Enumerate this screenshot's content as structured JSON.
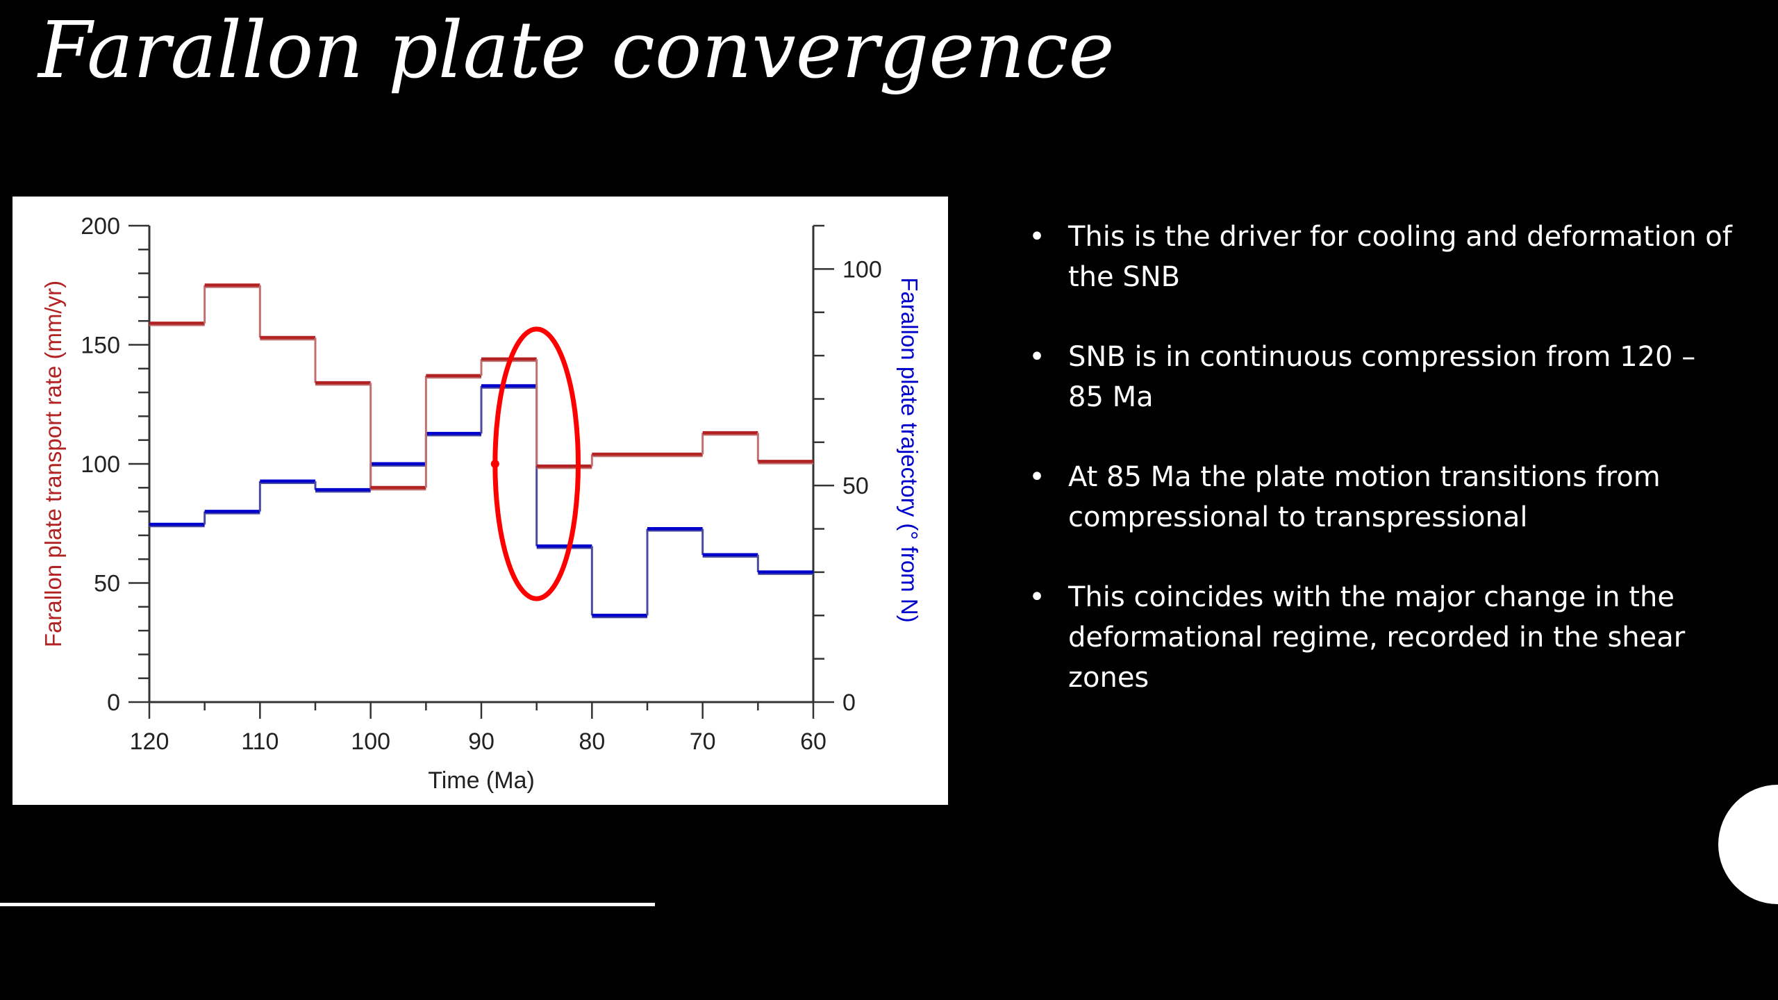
{
  "slide": {
    "title": "Farallon plate convergence",
    "bullets": [
      "This is the driver for cooling and deformation of the SNB",
      "SNB is in continuous compression from 120 – 85 Ma",
      "At 85 Ma the plate motion transitions from compressional to transpressional",
      "This coincides with the major change in the deformational regime, recorded in the shear zones"
    ],
    "bullet_symbol": "•"
  },
  "chart_data": {
    "type": "line",
    "step": true,
    "xlabel": "Time (Ma)",
    "ylabel_left": "Farallon plate transport rate (mm/yr)",
    "ylabel_right": "Farallon plate trajectory (° from N)",
    "xlim": [
      120,
      60
    ],
    "ylim_left": [
      0,
      200
    ],
    "ylim_right": [
      0,
      110
    ],
    "x_ticks": [
      120,
      110,
      100,
      90,
      80,
      70,
      60
    ],
    "y_left_ticks": [
      0,
      50,
      100,
      150,
      200
    ],
    "y_right_ticks": [
      0,
      50,
      100
    ],
    "colors": {
      "rate_dark": "#b22222",
      "rate_light": "#c07070",
      "trajectory_dark": "#0000cc",
      "trajectory_light": "#4a4a9e",
      "highlight_ellipse": "#ff0000",
      "left_axis_label": "#b22222",
      "right_axis_label": "#0000cc"
    },
    "series": [
      {
        "axis": "left",
        "segments": [
          {
            "x0": 120,
            "x1": 115,
            "y": 159
          },
          {
            "x0": 115,
            "x1": 110,
            "y": 175
          },
          {
            "x0": 110,
            "x1": 105,
            "y": 153
          },
          {
            "x0": 105,
            "x1": 100,
            "y": 134
          },
          {
            "x0": 100,
            "x1": 95,
            "y": 90
          },
          {
            "x0": 95,
            "x1": 90,
            "y": 137
          },
          {
            "x0": 90,
            "x1": 85,
            "y": 144
          },
          {
            "x0": 85,
            "x1": 80,
            "y": 99
          },
          {
            "x0": 80,
            "x1": 75,
            "y": 104
          },
          {
            "x0": 75,
            "x1": 70,
            "y": 104
          },
          {
            "x0": 70,
            "x1": 65,
            "y": 113
          },
          {
            "x0": 65,
            "x1": 60,
            "y": 101
          }
        ]
      },
      {
        "axis": "right",
        "segments": [
          {
            "x0": 120,
            "x1": 115,
            "y": 41
          },
          {
            "x0": 115,
            "x1": 110,
            "y": 44
          },
          {
            "x0": 110,
            "x1": 105,
            "y": 51
          },
          {
            "x0": 105,
            "x1": 100,
            "y": 49
          },
          {
            "x0": 100,
            "x1": 95,
            "y": 55
          },
          {
            "x0": 95,
            "x1": 90,
            "y": 62
          },
          {
            "x0": 90,
            "x1": 85,
            "y": 73
          },
          {
            "x0": 85,
            "x1": 80,
            "y": 36
          },
          {
            "x0": 80,
            "x1": 75,
            "y": 20
          },
          {
            "x0": 75,
            "x1": 70,
            "y": 40
          },
          {
            "x0": 70,
            "x1": 65,
            "y": 34
          },
          {
            "x0": 65,
            "x1": 60,
            "y": 30
          }
        ]
      }
    ],
    "annotation": {
      "type": "ellipse",
      "center_x": 85,
      "center_y_left": 100,
      "span_x": 4.5,
      "span_y_left": 56
    }
  }
}
